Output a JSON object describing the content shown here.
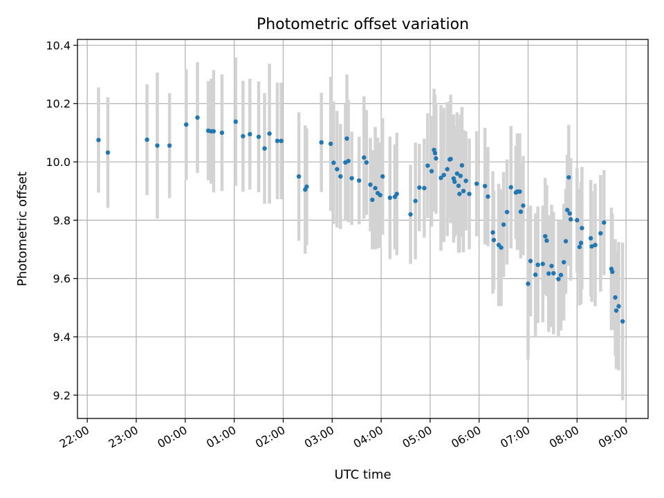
{
  "chart_data": {
    "type": "scatter",
    "title": "Photometric offset variation",
    "xlabel": "UTC time",
    "ylabel": "Photometric offset",
    "xlim": [
      21.8,
      33.45
    ],
    "ylim": [
      9.12,
      10.42
    ],
    "grid": true,
    "x_ticks": [
      22,
      23,
      24,
      25,
      26,
      27,
      28,
      29,
      30,
      31,
      32,
      33
    ],
    "x_tick_labels": [
      "22:00",
      "23:00",
      "00:00",
      "01:00",
      "02:00",
      "03:00",
      "04:00",
      "05:00",
      "06:00",
      "07:00",
      "08:00",
      "09:00"
    ],
    "y_ticks": [
      9.2,
      9.4,
      9.6,
      9.8,
      10.0,
      10.2,
      10.4
    ],
    "y_tick_labels": [
      "9.2",
      "9.4",
      "9.6",
      "9.8",
      "10.0",
      "10.2",
      "10.4"
    ],
    "colors": {
      "points": "#1f77b4",
      "error_bars": "#d3d3d3"
    },
    "series": [
      {
        "points": [
          [
            22.23,
            10.075,
            0.18
          ],
          [
            22.42,
            10.032,
            0.19
          ],
          [
            23.22,
            10.076,
            0.19
          ],
          [
            23.43,
            10.056,
            0.25
          ],
          [
            23.68,
            10.056,
            0.18
          ],
          [
            24.02,
            10.128,
            0.19
          ],
          [
            24.25,
            10.152,
            0.19
          ],
          [
            24.47,
            10.107,
            0.17
          ],
          [
            24.53,
            10.105,
            0.18
          ],
          [
            24.58,
            10.105,
            0.21
          ],
          [
            24.75,
            10.1,
            0.2
          ],
          [
            25.03,
            10.138,
            0.22
          ],
          [
            25.18,
            10.088,
            0.19
          ],
          [
            25.32,
            10.095,
            0.19
          ],
          [
            25.5,
            10.086,
            0.19
          ],
          [
            25.62,
            10.046,
            0.19
          ],
          [
            25.72,
            10.097,
            0.24
          ],
          [
            25.88,
            10.072,
            0.2
          ],
          [
            25.96,
            10.072,
            0.2
          ],
          [
            26.32,
            9.95,
            0.22
          ],
          [
            26.45,
            9.905,
            0.22
          ],
          [
            26.48,
            9.915,
            0.2
          ],
          [
            26.78,
            10.067,
            0.17
          ],
          [
            26.97,
            10.062,
            0.23
          ],
          [
            27.03,
            9.997,
            0.21
          ],
          [
            27.1,
            9.975,
            0.2
          ],
          [
            27.17,
            9.95,
            0.18
          ],
          [
            27.27,
            9.998,
            0.2
          ],
          [
            27.3,
            10.08,
            0.22
          ],
          [
            27.33,
            10.003,
            0.21
          ],
          [
            27.4,
            9.944,
            0.16
          ],
          [
            27.55,
            9.936,
            0.15
          ],
          [
            27.65,
            10.015,
            0.21
          ],
          [
            27.7,
            9.998,
            0.18
          ],
          [
            27.78,
            9.922,
            0.16
          ],
          [
            27.82,
            9.87,
            0.17
          ],
          [
            27.88,
            9.91,
            0.21
          ],
          [
            27.93,
            9.893,
            0.19
          ],
          [
            27.98,
            9.886,
            0.18
          ],
          [
            28.03,
            9.95,
            0.2
          ],
          [
            28.18,
            9.877,
            0.21
          ],
          [
            28.28,
            9.88,
            0.18
          ],
          [
            28.32,
            9.89,
            0.21
          ],
          [
            28.6,
            9.82,
            0.17
          ],
          [
            28.7,
            9.866,
            0.2
          ],
          [
            28.78,
            9.912,
            0.15
          ],
          [
            28.88,
            9.91,
            0.17
          ],
          [
            28.95,
            9.987,
            0.18
          ],
          [
            29.03,
            9.968,
            0.19
          ],
          [
            29.08,
            10.041,
            0.21
          ],
          [
            29.1,
            10.03,
            0.2
          ],
          [
            29.12,
            10.012,
            0.19
          ],
          [
            29.22,
            9.945,
            0.25
          ],
          [
            29.28,
            9.955,
            0.23
          ],
          [
            29.35,
            9.975,
            0.23
          ],
          [
            29.4,
            10.008,
            0.2
          ],
          [
            29.42,
            10.01,
            0.22
          ],
          [
            29.48,
            9.943,
            0.22
          ],
          [
            29.5,
            9.932,
            0.19
          ],
          [
            29.55,
            9.96,
            0.21
          ],
          [
            29.58,
            9.918,
            0.23
          ],
          [
            29.6,
            9.89,
            0.2
          ],
          [
            29.62,
            9.952,
            0.21
          ],
          [
            29.65,
            9.988,
            0.2
          ],
          [
            29.68,
            9.9,
            0.21
          ],
          [
            29.73,
            9.935,
            0.17
          ],
          [
            29.8,
            9.89,
            0.19
          ],
          [
            29.95,
            9.925,
            0.18
          ],
          [
            30.12,
            9.917,
            0.2
          ],
          [
            30.18,
            9.881,
            0.17
          ],
          [
            30.28,
            9.758,
            0.21
          ],
          [
            30.3,
            9.732,
            0.17
          ],
          [
            30.4,
            9.715,
            0.21
          ],
          [
            30.45,
            9.706,
            0.2
          ],
          [
            30.5,
            9.785,
            0.18
          ],
          [
            30.57,
            9.828,
            0.18
          ],
          [
            30.65,
            9.913,
            0.21
          ],
          [
            30.75,
            9.895,
            0.16
          ],
          [
            30.78,
            9.898,
            0.2
          ],
          [
            30.8,
            9.898,
            0.19
          ],
          [
            30.83,
            9.898,
            0.2
          ],
          [
            30.85,
            9.829,
            0.16
          ],
          [
            30.9,
            9.85,
            0.17
          ],
          [
            31.0,
            9.582,
            0.26
          ],
          [
            31.05,
            9.66,
            0.19
          ],
          [
            31.15,
            9.613,
            0.21
          ],
          [
            31.2,
            9.647,
            0.2
          ],
          [
            31.3,
            9.65,
            0.2
          ],
          [
            31.35,
            9.745,
            0.2
          ],
          [
            31.38,
            9.73,
            0.19
          ],
          [
            31.42,
            9.617,
            0.2
          ],
          [
            31.48,
            9.643,
            0.21
          ],
          [
            31.52,
            9.618,
            0.21
          ],
          [
            31.62,
            9.598,
            0.2
          ],
          [
            31.67,
            9.612,
            0.19
          ],
          [
            31.73,
            9.656,
            0.2
          ],
          [
            31.77,
            9.728,
            0.18
          ],
          [
            31.8,
            9.835,
            0.19
          ],
          [
            31.83,
            9.947,
            0.18
          ],
          [
            31.85,
            9.823,
            0.18
          ],
          [
            31.87,
            9.803,
            0.21
          ],
          [
            32.0,
            9.8,
            0.18
          ],
          [
            32.05,
            9.708,
            0.2
          ],
          [
            32.08,
            9.722,
            0.21
          ],
          [
            32.1,
            9.773,
            0.21
          ],
          [
            32.28,
            9.738,
            0.2
          ],
          [
            32.3,
            9.71,
            0.19
          ],
          [
            32.37,
            9.715,
            0.21
          ],
          [
            32.48,
            9.755,
            0.2
          ],
          [
            32.55,
            9.792,
            0.18
          ],
          [
            32.7,
            9.633,
            0.21
          ],
          [
            32.72,
            9.623,
            0.2
          ],
          [
            32.78,
            9.535,
            0.2
          ],
          [
            32.8,
            9.49,
            0.2
          ],
          [
            32.85,
            9.505,
            0.22
          ],
          [
            32.93,
            9.453,
            0.27
          ]
        ]
      }
    ]
  }
}
